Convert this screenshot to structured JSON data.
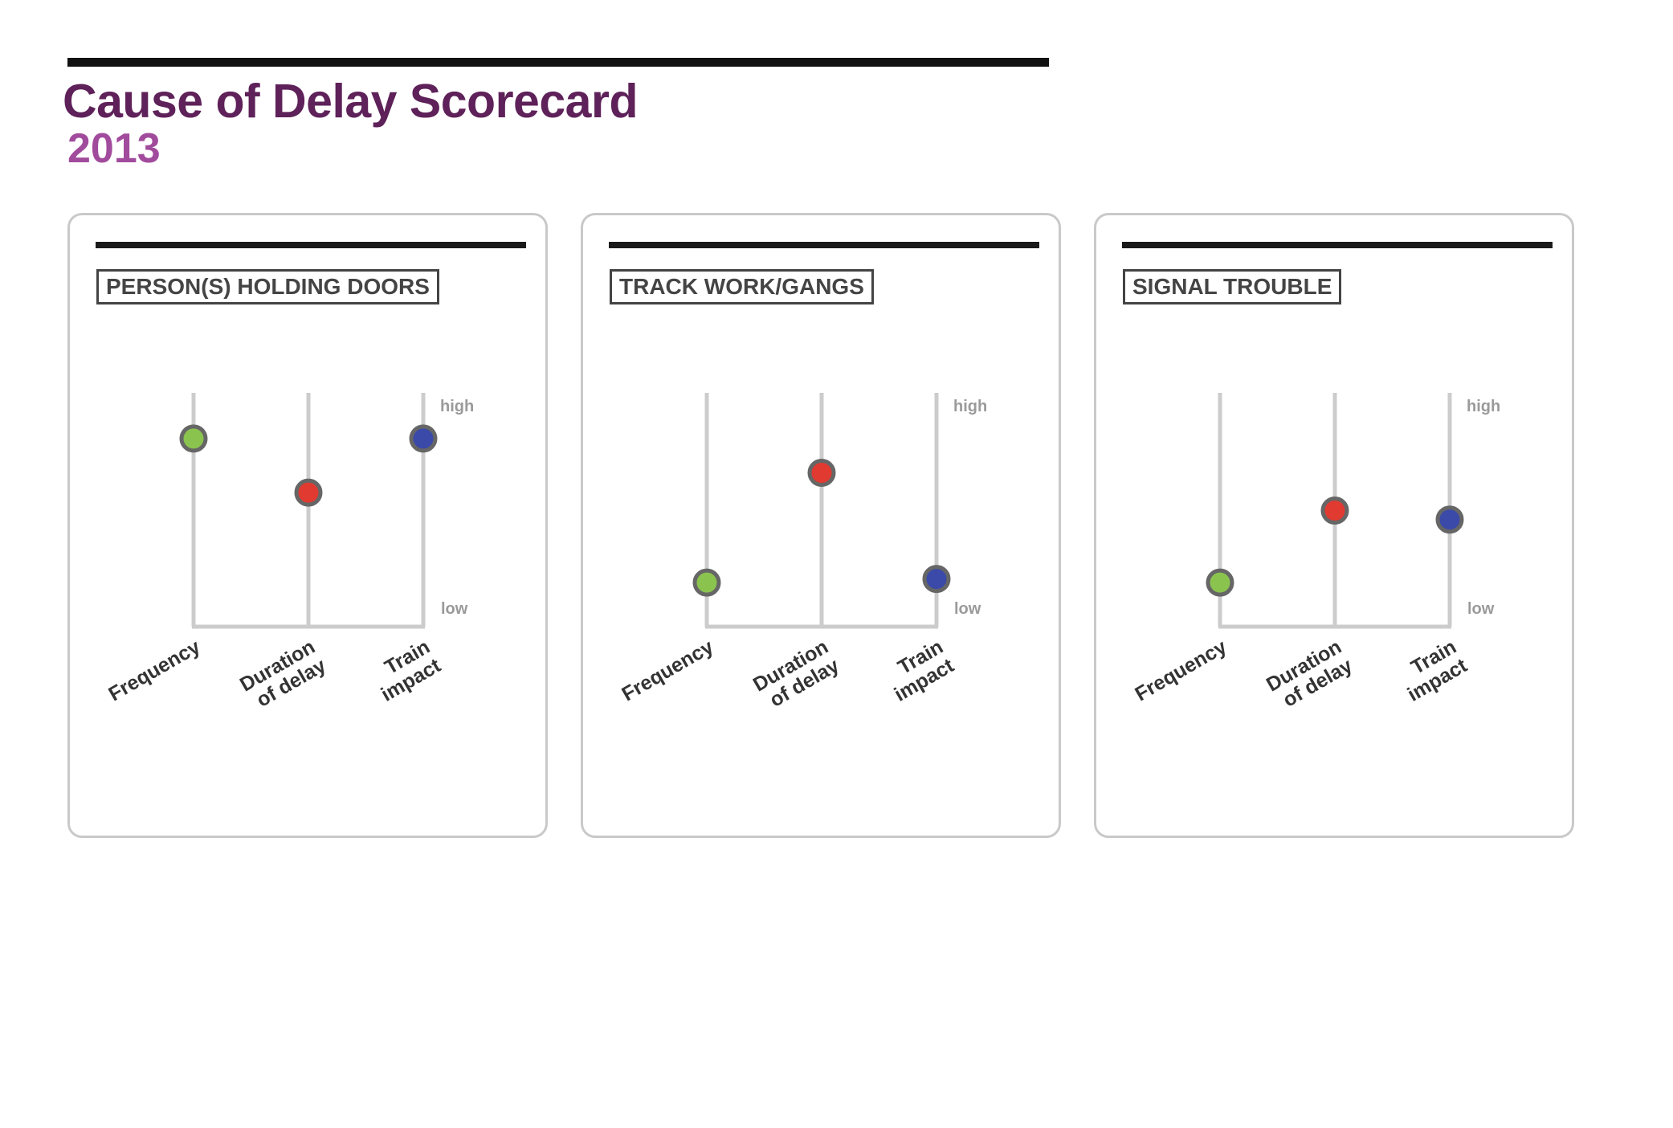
{
  "header": {
    "title": "Cause of Delay Scorecard",
    "subtitle": "2013"
  },
  "colors": {
    "title": "#5e2159",
    "subtitle": "#a14b9c",
    "frequency": "#8bc34f",
    "duration": "#e03a31",
    "impact": "#3b4aa8",
    "dot_stroke": "#666666",
    "axis": "#cccccc"
  },
  "scale": {
    "high_label": "high",
    "low_label": "low"
  },
  "metrics": [
    {
      "key": "frequency",
      "label_lines": [
        "Frequency"
      ]
    },
    {
      "key": "duration",
      "label_lines": [
        "Duration",
        "of delay"
      ]
    },
    {
      "key": "impact",
      "label_lines": [
        "Train",
        "impact"
      ]
    }
  ],
  "chart_data": [
    {
      "type": "scatter",
      "title": "PERSON(S) HOLDING DOORS",
      "categories": [
        "Frequency",
        "Duration of delay",
        "Train impact"
      ],
      "values": [
        0.92,
        0.62,
        0.92
      ],
      "ylim": [
        0,
        1
      ],
      "yticks": [
        "low",
        "high"
      ]
    },
    {
      "type": "scatter",
      "title": "TRACK WORK/GANGS",
      "categories": [
        "Frequency",
        "Duration of delay",
        "Train impact"
      ],
      "values": [
        0.12,
        0.73,
        0.14
      ],
      "ylim": [
        0,
        1
      ],
      "yticks": [
        "low",
        "high"
      ]
    },
    {
      "type": "scatter",
      "title": "SIGNAL TROUBLE",
      "categories": [
        "Frequency",
        "Duration of delay",
        "Train impact"
      ],
      "values": [
        0.12,
        0.52,
        0.47
      ],
      "ylim": [
        0,
        1
      ],
      "yticks": [
        "low",
        "high"
      ]
    }
  ]
}
